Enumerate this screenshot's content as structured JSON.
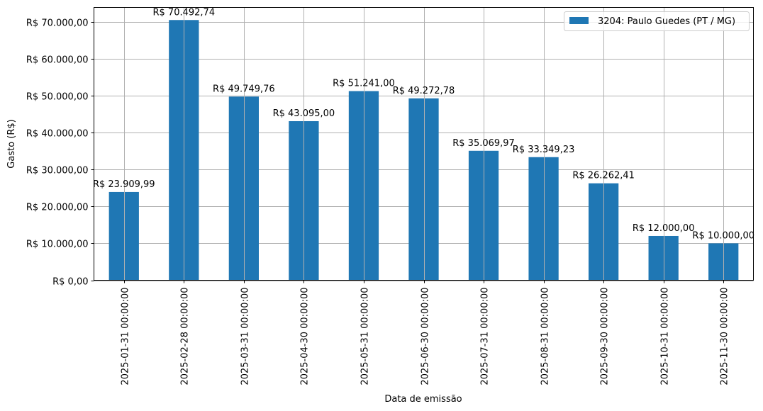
{
  "chart_data": {
    "type": "bar",
    "title": "",
    "xlabel": "Data de emissão",
    "ylabel": "Gasto (R$)",
    "ylim": [
      0,
      73900
    ],
    "grid": true,
    "legend_position": "upper right",
    "categories": [
      "2025-01-31 00:00:00",
      "2025-02-28 00:00:00",
      "2025-03-31 00:00:00",
      "2025-04-30 00:00:00",
      "2025-05-31 00:00:00",
      "2025-06-30 00:00:00",
      "2025-07-31 00:00:00",
      "2025-08-31 00:00:00",
      "2025-09-30 00:00:00",
      "2025-10-31 00:00:00",
      "2025-11-30 00:00:00"
    ],
    "series": [
      {
        "name": "3204: Paulo Guedes (PT / MG)",
        "color": "#1f77b4",
        "values": [
          23909.99,
          70492.74,
          49749.76,
          43095.0,
          51241.0,
          49272.78,
          35069.97,
          33349.23,
          26262.41,
          12000.0,
          10000.0
        ],
        "labels": [
          "R$ 23.909,99",
          "R$ 70.492,74",
          "R$ 49.749,76",
          "R$ 43.095,00",
          "R$ 51.241,00",
          "R$ 49.272,78",
          "R$ 35.069,97",
          "R$ 33.349,23",
          "R$ 26.262,41",
          "R$ 12.000,00",
          "R$ 10.000,00"
        ]
      }
    ],
    "y_ticks": [
      {
        "value": 0,
        "label": "R$ 0,00"
      },
      {
        "value": 10000,
        "label": "R$ 10.000,00"
      },
      {
        "value": 20000,
        "label": "R$ 20.000,00"
      },
      {
        "value": 30000,
        "label": "R$ 30.000,00"
      },
      {
        "value": 40000,
        "label": "R$ 40.000,00"
      },
      {
        "value": 50000,
        "label": "R$ 50.000,00"
      },
      {
        "value": 60000,
        "label": "R$ 60.000,00"
      },
      {
        "value": 70000,
        "label": "R$ 70.000,00"
      }
    ]
  },
  "style": {
    "grid_color": "#b0b0b0",
    "bar_color": "#1f77b4",
    "axis_color": "#000000"
  }
}
